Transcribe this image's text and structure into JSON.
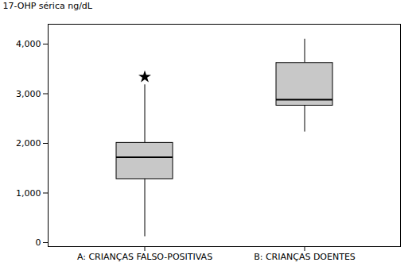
{
  "chart_data": {
    "type": "box",
    "categories": [
      "A: CRIANÇAS FALSO-POSITIVAS",
      "B: CRIANÇAS DOENTES"
    ],
    "boxes": [
      {
        "whisker_low": 120,
        "q1": 1280,
        "median": 1720,
        "q3": 2010,
        "whisker_high": 3180,
        "outliers": [
          3340
        ]
      },
      {
        "whisker_low": 2230,
        "q1": 2760,
        "median": 2880,
        "q3": 3620,
        "whisker_high": 4100,
        "outliers": []
      }
    ],
    "ylabel": "17-OHP sérica ng/dL",
    "ylim": [
      -80,
      4400
    ],
    "yticks": [
      0,
      1000,
      2000,
      3000,
      4000
    ],
    "color": "#c8c8c8",
    "marker": "star",
    "grid": false
  }
}
